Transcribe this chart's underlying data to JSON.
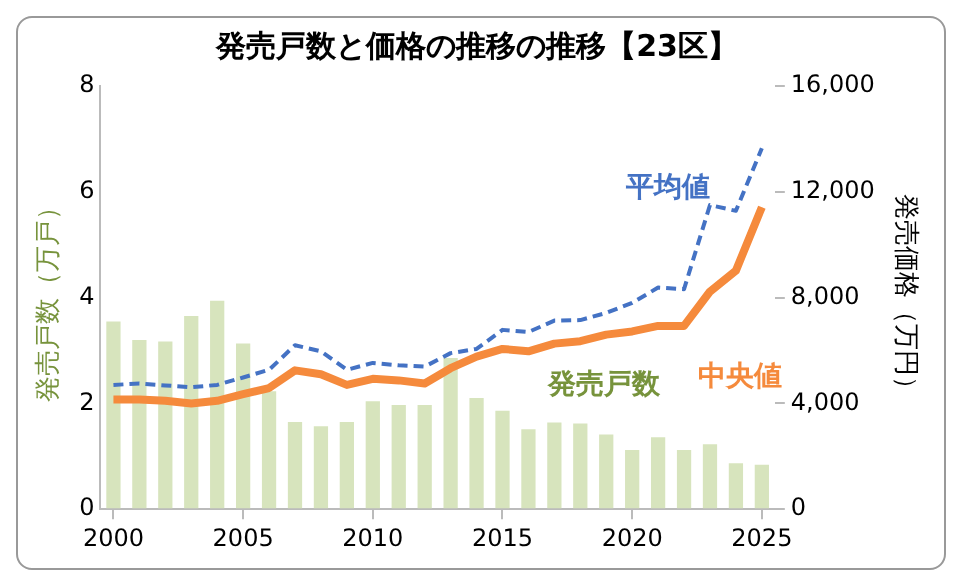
{
  "chart_data": {
    "type": "bar",
    "title": "発売戸数と価格の推移の推移【23区】",
    "ylabel": "発売戸数（万戸）",
    "y2label": "発売価格（万円）",
    "categories": [
      "2000",
      null,
      null,
      null,
      null,
      "2005",
      null,
      null,
      null,
      null,
      "2010",
      null,
      null,
      null,
      null,
      "2015",
      null,
      null,
      null,
      null,
      "2020",
      null,
      null,
      null,
      null,
      "2025"
    ],
    "series": [
      {
        "name": "発売戸数",
        "color": "#d7e4bd",
        "values": [
          3.55,
          3.2,
          3.17,
          3.65,
          3.94,
          3.13,
          2.23,
          1.65,
          1.57,
          1.65,
          2.04,
          1.97,
          1.97,
          2.86,
          2.1,
          1.86,
          1.51,
          1.64,
          1.62,
          1.41,
          1.12,
          1.36,
          1.12,
          1.23,
          0.87,
          0.84
        ]
      },
      {
        "name": "平均値",
        "type": "line",
        "axis": "y2",
        "color": "#4472c4",
        "line_style": "dashed",
        "values": [
          4700,
          4750,
          4680,
          4610,
          4700,
          4980,
          5270,
          6200,
          5970,
          5270,
          5530,
          5440,
          5390,
          5900,
          6060,
          6780,
          6700,
          7130,
          7150,
          7420,
          7800,
          8380,
          8320,
          11500,
          11280,
          13650
        ]
      },
      {
        "name": "中央値",
        "type": "line",
        "axis": "y2",
        "color": "#f58a3c",
        "line_style": "solid",
        "values": [
          4150,
          4150,
          4100,
          4000,
          4100,
          4350,
          4580,
          5250,
          5100,
          4700,
          4930,
          4870,
          4750,
          5330,
          5770,
          6060,
          5970,
          6260,
          6350,
          6600,
          6720,
          6930,
          6930,
          8230,
          9020,
          11420
        ]
      }
    ],
    "ylim": [
      0,
      8
    ],
    "yticks": [
      0,
      2,
      4,
      6,
      8
    ],
    "y2lim": [
      0,
      16000
    ],
    "y2ticks": [
      {
        "value": 0,
        "label": "0"
      },
      {
        "value": 4000,
        "label": "4,000"
      },
      {
        "value": 8000,
        "label": "8,000"
      },
      {
        "value": 12000,
        "label": "12,000"
      },
      {
        "value": 16000,
        "label": "16,000"
      }
    ],
    "grid": false,
    "legend": false,
    "marker": "none"
  }
}
